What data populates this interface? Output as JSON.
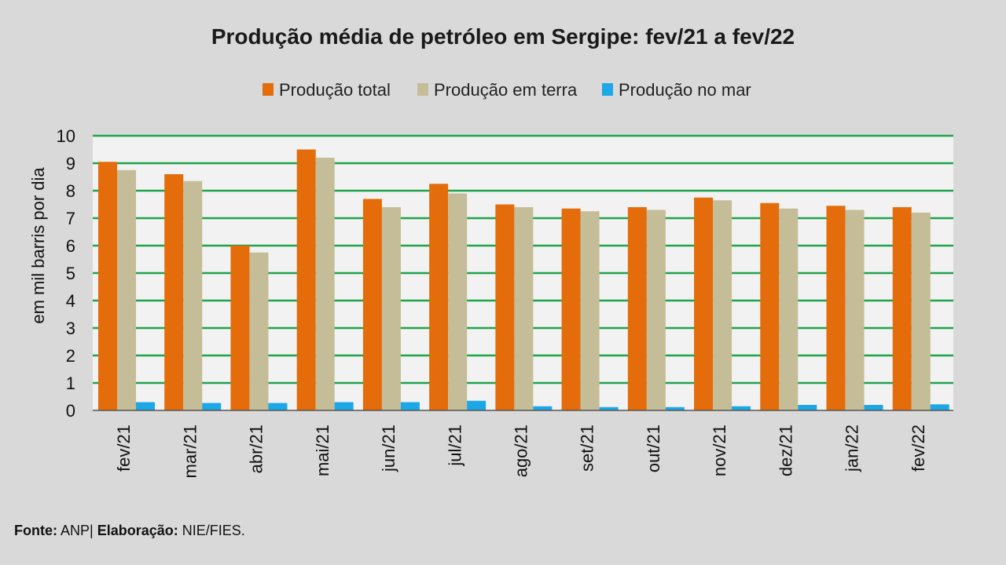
{
  "chart_data": {
    "type": "bar",
    "title": "Produção média de petróleo em Sergipe:  fev/21 a fev/22",
    "ylabel": "em mil barris por dia",
    "xlabel": "",
    "ylim": [
      0,
      10
    ],
    "yticks": [
      0,
      1,
      2,
      3,
      4,
      5,
      6,
      7,
      8,
      9,
      10
    ],
    "grid": true,
    "legend_position": "top-center",
    "categories": [
      "fev/21",
      "mar/21",
      "abr/21",
      "mai/21",
      "jun/21",
      "jul/21",
      "ago/21",
      "set/21",
      "out/21",
      "nov/21",
      "dez/21",
      "jan/22",
      "fev/22"
    ],
    "series": [
      {
        "name": "Produção total",
        "color": "#e46c0a",
        "values": [
          9.05,
          8.6,
          6.0,
          9.5,
          7.7,
          8.25,
          7.5,
          7.35,
          7.4,
          7.75,
          7.55,
          7.45,
          7.4
        ]
      },
      {
        "name": "Produção em terra",
        "color": "#c4bd97",
        "values": [
          8.75,
          8.35,
          5.75,
          9.2,
          7.4,
          7.9,
          7.4,
          7.25,
          7.3,
          7.65,
          7.35,
          7.3,
          7.2
        ]
      },
      {
        "name": "Produção no mar",
        "color": "#1ca7e6",
        "values": [
          0.3,
          0.27,
          0.27,
          0.3,
          0.3,
          0.35,
          0.15,
          0.12,
          0.12,
          0.15,
          0.2,
          0.2,
          0.22
        ]
      }
    ]
  },
  "footer": {
    "source_label": "Fonte:",
    "source_value": "ANP|",
    "elab_label": "Elaboração:",
    "elab_value": "NIE/FIES."
  }
}
